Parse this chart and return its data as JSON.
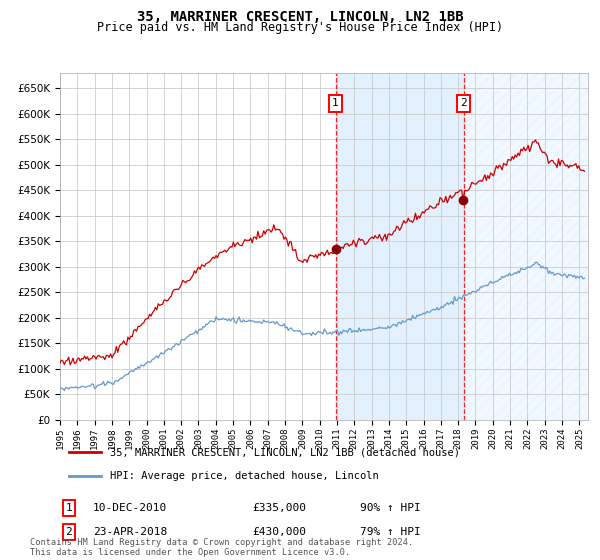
{
  "title_display": "35, MARRINER CRESCENT, LINCOLN, LN2 1BB",
  "subtitle": "Price paid vs. HM Land Registry's House Price Index (HPI)",
  "legend_line1": "35, MARRINER CRESCENT, LINCOLN, LN2 1BB (detached house)",
  "legend_line2": "HPI: Average price, detached house, Lincoln",
  "annotation1_label": "1",
  "annotation1_date": "10-DEC-2010",
  "annotation1_price": "£335,000",
  "annotation1_pct": "90% ↑ HPI",
  "annotation1_year": 2010.917,
  "annotation1_value": 335000,
  "annotation2_label": "2",
  "annotation2_date": "23-APR-2018",
  "annotation2_price": "£430,000",
  "annotation2_pct": "79% ↑ HPI",
  "annotation2_year": 2018.31,
  "annotation2_value": 430000,
  "ylim": [
    0,
    680000
  ],
  "xlim_start": 1995.0,
  "xlim_end": 2025.5,
  "hpi_color": "#6699cc",
  "price_color": "#cc0000",
  "dot_color": "#8b0000",
  "background_color": "#ffffff",
  "grid_color": "#cccccc",
  "shade_color": "#ddeeff",
  "footer": "Contains HM Land Registry data © Crown copyright and database right 2024.\nThis data is licensed under the Open Government Licence v3.0."
}
